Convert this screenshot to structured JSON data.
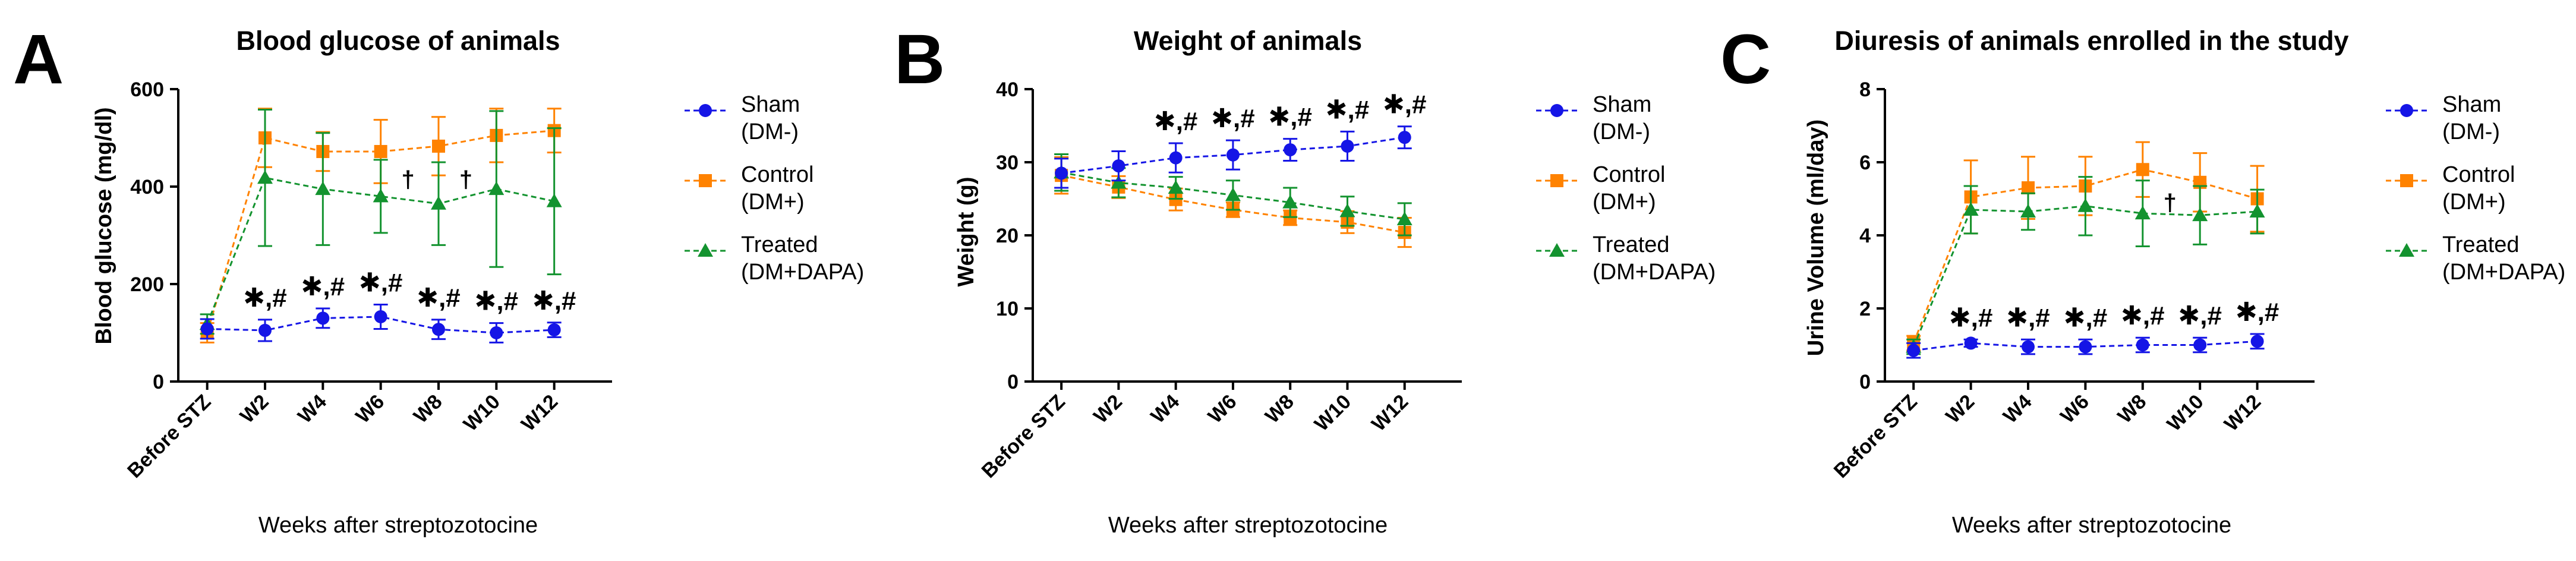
{
  "colors": {
    "sham": "#1515e6",
    "control": "#ff8200",
    "treated": "#13932f",
    "axis": "#000000"
  },
  "x_label": "Weeks after streptozotocine",
  "categories": [
    "Before STZ",
    "W2",
    "W4",
    "W6",
    "W8",
    "W10",
    "W12"
  ],
  "significance_label": "✱,#",
  "dagger_label": "†",
  "legend": [
    {
      "key": "sham",
      "line1": "Sham",
      "line2": "(DM-)",
      "marker": "circle-icon"
    },
    {
      "key": "control",
      "line1": "Control",
      "line2": "(DM+)",
      "marker": "square-icon"
    },
    {
      "key": "treated",
      "line1": "Treated",
      "line2": "(DM+DAPA)",
      "marker": "triangle-icon"
    }
  ],
  "chart_data": [
    {
      "type": "line",
      "panel": "A",
      "title": "Blood glucose of animals",
      "xlabel": "Weeks after streptozotocine",
      "ylabel": "Blood glucose (mg/dl)",
      "categories": [
        "Before STZ",
        "W2",
        "W4",
        "W6",
        "W8",
        "W10",
        "W12"
      ],
      "ylim": [
        0,
        600
      ],
      "yticks": [
        0,
        200,
        400,
        600
      ],
      "series": [
        {
          "name": "Sham (DM-)",
          "key": "sham",
          "values": [
            108,
            105,
            130,
            133,
            107,
            100,
            106
          ],
          "err": [
            20,
            22,
            20,
            25,
            20,
            20,
            15
          ]
        },
        {
          "name": "Control (DM+)",
          "key": "control",
          "values": [
            100,
            500,
            472,
            472,
            483,
            505,
            515
          ],
          "err": [
            20,
            60,
            40,
            65,
            60,
            55,
            45
          ]
        },
        {
          "name": "Treated (DM+DAPA)",
          "key": "treated",
          "values": [
            118,
            418,
            395,
            380,
            365,
            395,
            370
          ],
          "err": [
            20,
            140,
            115,
            75,
            85,
            160,
            150
          ]
        }
      ],
      "significance_points": [
        1,
        2,
        3,
        4,
        5,
        6
      ],
      "dagger_points": [
        3,
        4
      ],
      "dagger_y": 415
    },
    {
      "type": "line",
      "panel": "B",
      "title": "Weight of animals",
      "xlabel": "Weeks after streptozotocine",
      "ylabel": "Weight (g)",
      "categories": [
        "Before STZ",
        "W2",
        "W4",
        "W6",
        "W8",
        "W10",
        "W12"
      ],
      "ylim": [
        0,
        40
      ],
      "yticks": [
        0,
        10,
        20,
        30,
        40
      ],
      "series": [
        {
          "name": "Sham (DM-)",
          "key": "sham",
          "values": [
            28.5,
            29.5,
            30.6,
            31.0,
            31.7,
            32.2,
            33.4
          ],
          "err": [
            2.0,
            2.0,
            2.0,
            2.0,
            1.5,
            2.0,
            1.5
          ]
        },
        {
          "name": "Control (DM+)",
          "key": "control",
          "values": [
            28.2,
            26.6,
            24.9,
            23.5,
            22.4,
            21.8,
            20.4
          ],
          "err": [
            2.5,
            1.5,
            1.5,
            1.0,
            1.0,
            1.5,
            2.0
          ]
        },
        {
          "name": "Treated (DM+DAPA)",
          "key": "treated",
          "values": [
            28.6,
            27.2,
            26.5,
            25.5,
            24.5,
            23.3,
            22.2
          ],
          "err": [
            2.5,
            2.0,
            1.5,
            2.0,
            2.0,
            2.0,
            2.2
          ]
        }
      ],
      "significance_points": [
        2,
        3,
        4,
        5,
        6
      ],
      "dagger_points": [],
      "dagger_y": 0
    },
    {
      "type": "line",
      "panel": "C",
      "title": "Diuresis of animals enrolled in the study",
      "xlabel": "Weeks after streptozotocine",
      "ylabel": "Urine Volume (ml/day)",
      "categories": [
        "Before STZ",
        "W2",
        "W4",
        "W6",
        "W8",
        "W10",
        "W12"
      ],
      "ylim": [
        0,
        8
      ],
      "yticks": [
        0,
        2,
        4,
        6,
        8
      ],
      "series": [
        {
          "name": "Sham (DM-)",
          "key": "sham",
          "values": [
            0.85,
            1.05,
            0.95,
            0.95,
            1.0,
            1.0,
            1.1
          ],
          "err": [
            0.2,
            0.1,
            0.2,
            0.2,
            0.2,
            0.2,
            0.2
          ]
        },
        {
          "name": "Control (DM+)",
          "key": "control",
          "values": [
            1.05,
            5.05,
            5.3,
            5.35,
            5.8,
            5.45,
            5.0
          ],
          "err": [
            0.2,
            1.0,
            0.85,
            0.8,
            0.75,
            0.8,
            0.9
          ]
        },
        {
          "name": "Treated (DM+DAPA)",
          "key": "treated",
          "values": [
            0.95,
            4.7,
            4.65,
            4.8,
            4.6,
            4.55,
            4.65
          ],
          "err": [
            0.2,
            0.65,
            0.5,
            0.8,
            0.9,
            0.8,
            0.6
          ]
        }
      ],
      "significance_points": [
        1,
        2,
        3,
        4,
        5,
        6
      ],
      "dagger_points": [
        4
      ],
      "dagger_y": 4.9
    }
  ]
}
